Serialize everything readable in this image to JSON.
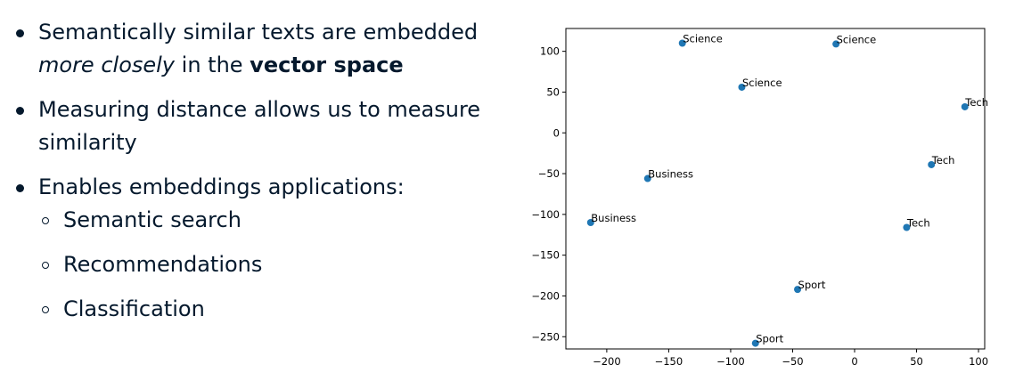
{
  "bullets": [
    {
      "pre": "Semantically similar texts are embedded",
      "em": "more closely",
      "mid": " in the ",
      "strong": "vector space"
    },
    {
      "text": "Measuring distance allows us to measure similarity"
    },
    {
      "text": "Enables embeddings applications:",
      "subitems": [
        "Semantic search",
        "Recommendations",
        "Classification"
      ]
    }
  ],
  "chart_data": {
    "type": "scatter",
    "title": "",
    "xlabel": "",
    "ylabel": "",
    "xlim": [
      -233,
      105
    ],
    "ylim": [
      -265,
      128
    ],
    "xticks": [
      -200,
      -150,
      -100,
      -50,
      0,
      50,
      100
    ],
    "yticks": [
      100,
      50,
      0,
      -50,
      -100,
      -150,
      -200,
      -250
    ],
    "grid": false,
    "marker_color": "#1f77b4",
    "points": [
      {
        "x": -139,
        "y": 110,
        "label": "Science"
      },
      {
        "x": -15,
        "y": 109,
        "label": "Science"
      },
      {
        "x": -91,
        "y": 56,
        "label": "Science"
      },
      {
        "x": 89,
        "y": 32,
        "label": "Tech"
      },
      {
        "x": 62,
        "y": -39,
        "label": "Tech"
      },
      {
        "x": 42,
        "y": -116,
        "label": "Tech"
      },
      {
        "x": -167,
        "y": -56,
        "label": "Business"
      },
      {
        "x": -213,
        "y": -110,
        "label": "Business"
      },
      {
        "x": -46,
        "y": -192,
        "label": "Sport"
      },
      {
        "x": -80,
        "y": -258,
        "label": "Sport"
      }
    ]
  }
}
